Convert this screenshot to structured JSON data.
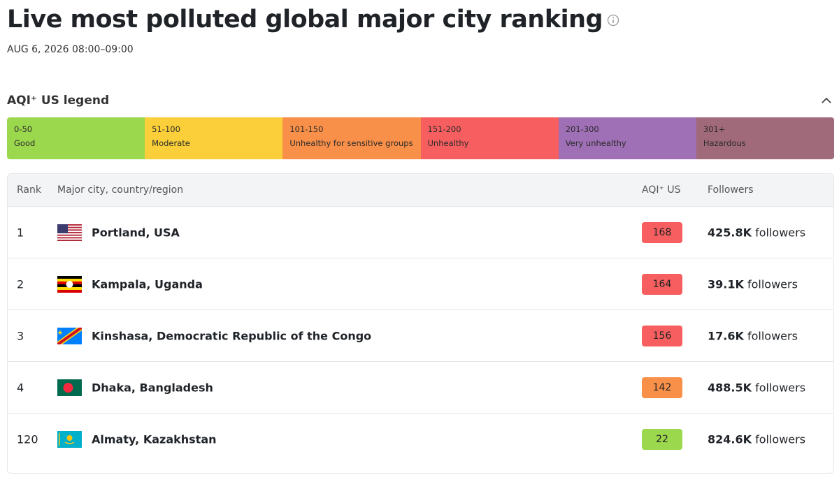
{
  "header": {
    "title": "Live most polluted global major city ranking",
    "subtitle": "AUG 6, 2026 08:00–09:00"
  },
  "legend": {
    "title": "AQI⁺ US legend",
    "items": [
      {
        "range": "0-50",
        "label": "Good",
        "color": "#9cd84e"
      },
      {
        "range": "51-100",
        "label": "Moderate",
        "color": "#facf39"
      },
      {
        "range": "101-150",
        "label": "Unhealthy for sensitive groups",
        "color": "#f99049"
      },
      {
        "range": "151-200",
        "label": "Unhealthy",
        "color": "#f65e5f"
      },
      {
        "range": "201-300",
        "label": "Very unhealthy",
        "color": "#a070b6"
      },
      {
        "range": "301+",
        "label": "Hazardous",
        "color": "#a06a7b"
      }
    ]
  },
  "table": {
    "headers": [
      "Rank",
      "Major city, country/region",
      "AQI⁺ US",
      "Followers"
    ],
    "rows": [
      {
        "rank": 1,
        "city": "Portland, USA",
        "aqi": 168,
        "followers": "425.8K",
        "followers_suffix": "followers"
      },
      {
        "rank": 2,
        "city": "Kampala, Uganda",
        "aqi": 164,
        "followers": "39.1K",
        "followers_suffix": "followers"
      },
      {
        "rank": 3,
        "city": "Kinshasa, Democratic Republic of the Congo",
        "aqi": 156,
        "followers": "17.6K",
        "followers_suffix": "followers"
      },
      {
        "rank": 4,
        "city": "Dhaka, Bangladesh",
        "aqi": 142,
        "followers": "488.5K",
        "followers_suffix": "followers"
      },
      {
        "rank": 120,
        "city": "Almaty, Kazakhstan",
        "aqi": 22,
        "followers": "824.6K",
        "followers_suffix": "followers"
      }
    ]
  }
}
